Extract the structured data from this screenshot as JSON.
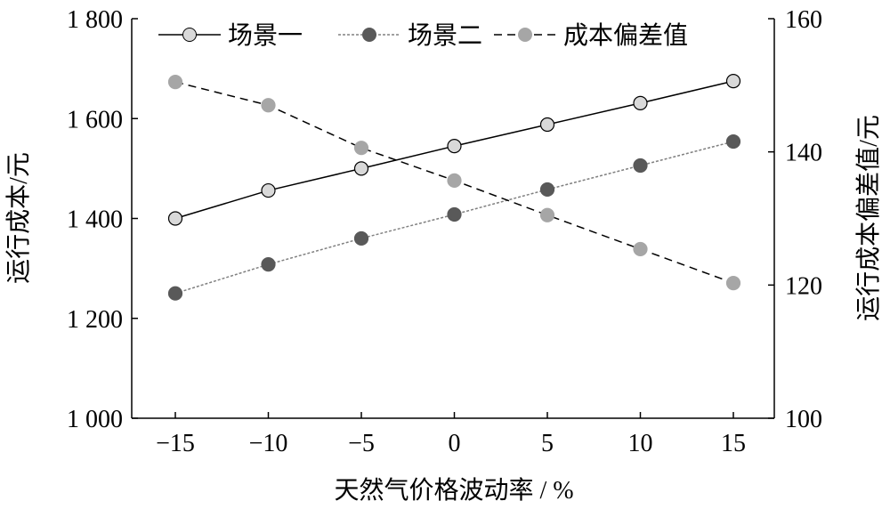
{
  "chart_data": {
    "type": "line",
    "x": [
      -15,
      -10,
      -5,
      0,
      5,
      10,
      15
    ],
    "xlabel": "天然气价格波动率 / %",
    "ylabel": "运行成本/元",
    "y2label": "运行成本偏差值/元",
    "ylim": [
      1000,
      1800
    ],
    "y2lim": [
      100,
      160
    ],
    "xticks": [
      "−15",
      "−10",
      "−5",
      "0",
      "5",
      "10",
      "15"
    ],
    "yticks": [
      "1 000",
      "1 200",
      "1 400",
      "1 600",
      "1 800"
    ],
    "y2ticks": [
      "100",
      "120",
      "140",
      "160"
    ],
    "legend_position": "top",
    "grid": false,
    "series": [
      {
        "name": "场景一",
        "axis": "left",
        "values": [
          1400,
          1456,
          1500,
          1545,
          1588,
          1631,
          1675
        ],
        "color": "#000000",
        "marker": "#d9d9d9",
        "dash": ""
      },
      {
        "name": "场景二",
        "axis": "left",
        "values": [
          1250,
          1308,
          1360,
          1408,
          1458,
          1506,
          1554
        ],
        "color": "#808080",
        "marker": "#595959",
        "dash": "3,2"
      },
      {
        "name": "成本偏差值",
        "axis": "right",
        "values": [
          150.5,
          147,
          140.6,
          135.7,
          130.5,
          125.4,
          120.3
        ],
        "color": "#000000",
        "marker": "#a6a6a6",
        "dash": "9,6"
      }
    ]
  }
}
